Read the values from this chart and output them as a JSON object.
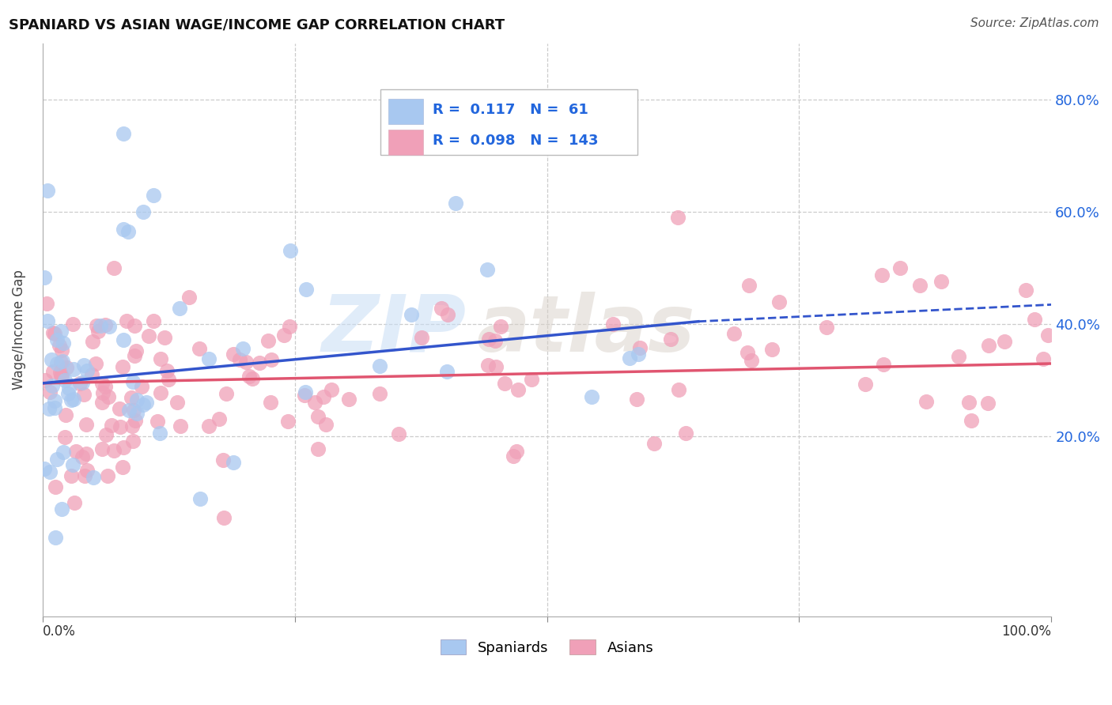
{
  "title": "SPANIARD VS ASIAN WAGE/INCOME GAP CORRELATION CHART",
  "source": "Source: ZipAtlas.com",
  "ylabel": "Wage/Income Gap",
  "ylabel_ticks": [
    0.2,
    0.4,
    0.6,
    0.8
  ],
  "ylabel_tick_labels": [
    "20.0%",
    "40.0%",
    "60.0%",
    "80.0%"
  ],
  "xlim": [
    0.0,
    1.0
  ],
  "ylim": [
    -0.12,
    0.9
  ],
  "legend_label1": "Spaniards",
  "legend_label2": "Asians",
  "r1": 0.117,
  "n1": 61,
  "r2": 0.098,
  "n2": 143,
  "color_blue": "#a8c8f0",
  "color_pink": "#f0a0b8",
  "color_blue_line": "#3355cc",
  "color_pink_line": "#e05570",
  "watermark_zip": "ZIP",
  "watermark_atlas": "atlas"
}
